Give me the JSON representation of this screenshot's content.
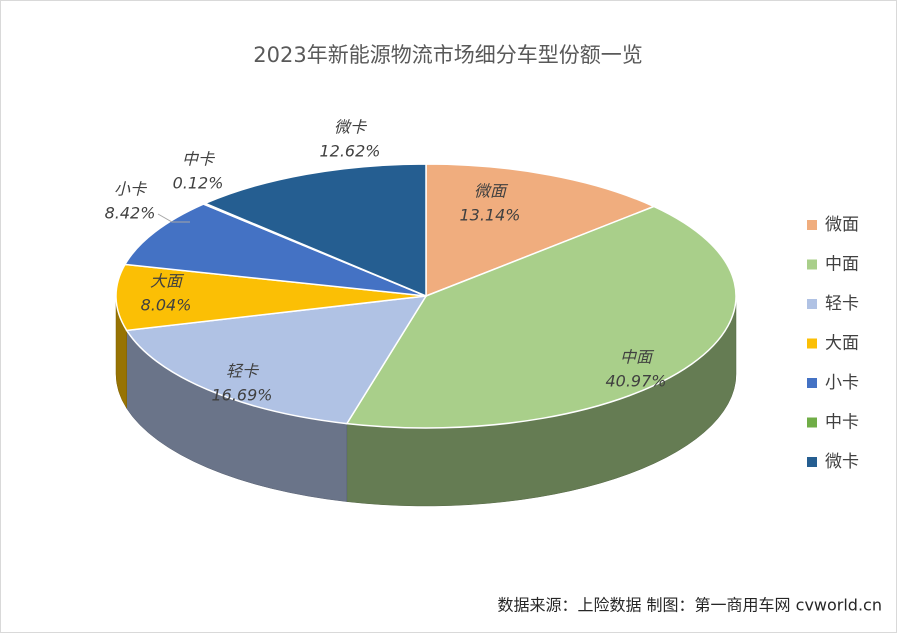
{
  "chart_data": {
    "type": "pie",
    "title": "2023年新能源物流市场细分车型份额一览",
    "categories": [
      "微面",
      "中面",
      "轻卡",
      "大面",
      "小卡",
      "中卡",
      "微卡"
    ],
    "values": [
      13.14,
      40.97,
      16.69,
      8.04,
      8.42,
      0.12,
      12.62
    ],
    "value_labels": [
      "13.14%",
      "40.97%",
      "16.69%",
      "8.04%",
      "8.42%",
      "0.12%",
      "12.62%"
    ],
    "colors": [
      "#f0ad7e",
      "#a9cf8a",
      "#b0c2e4",
      "#fbbf05",
      "#4472c4",
      "#70ad47",
      "#255e91"
    ],
    "legend": "right",
    "3d": true,
    "source": "数据来源：上险数据 制图：第一商用车网 cvworld.cn"
  }
}
